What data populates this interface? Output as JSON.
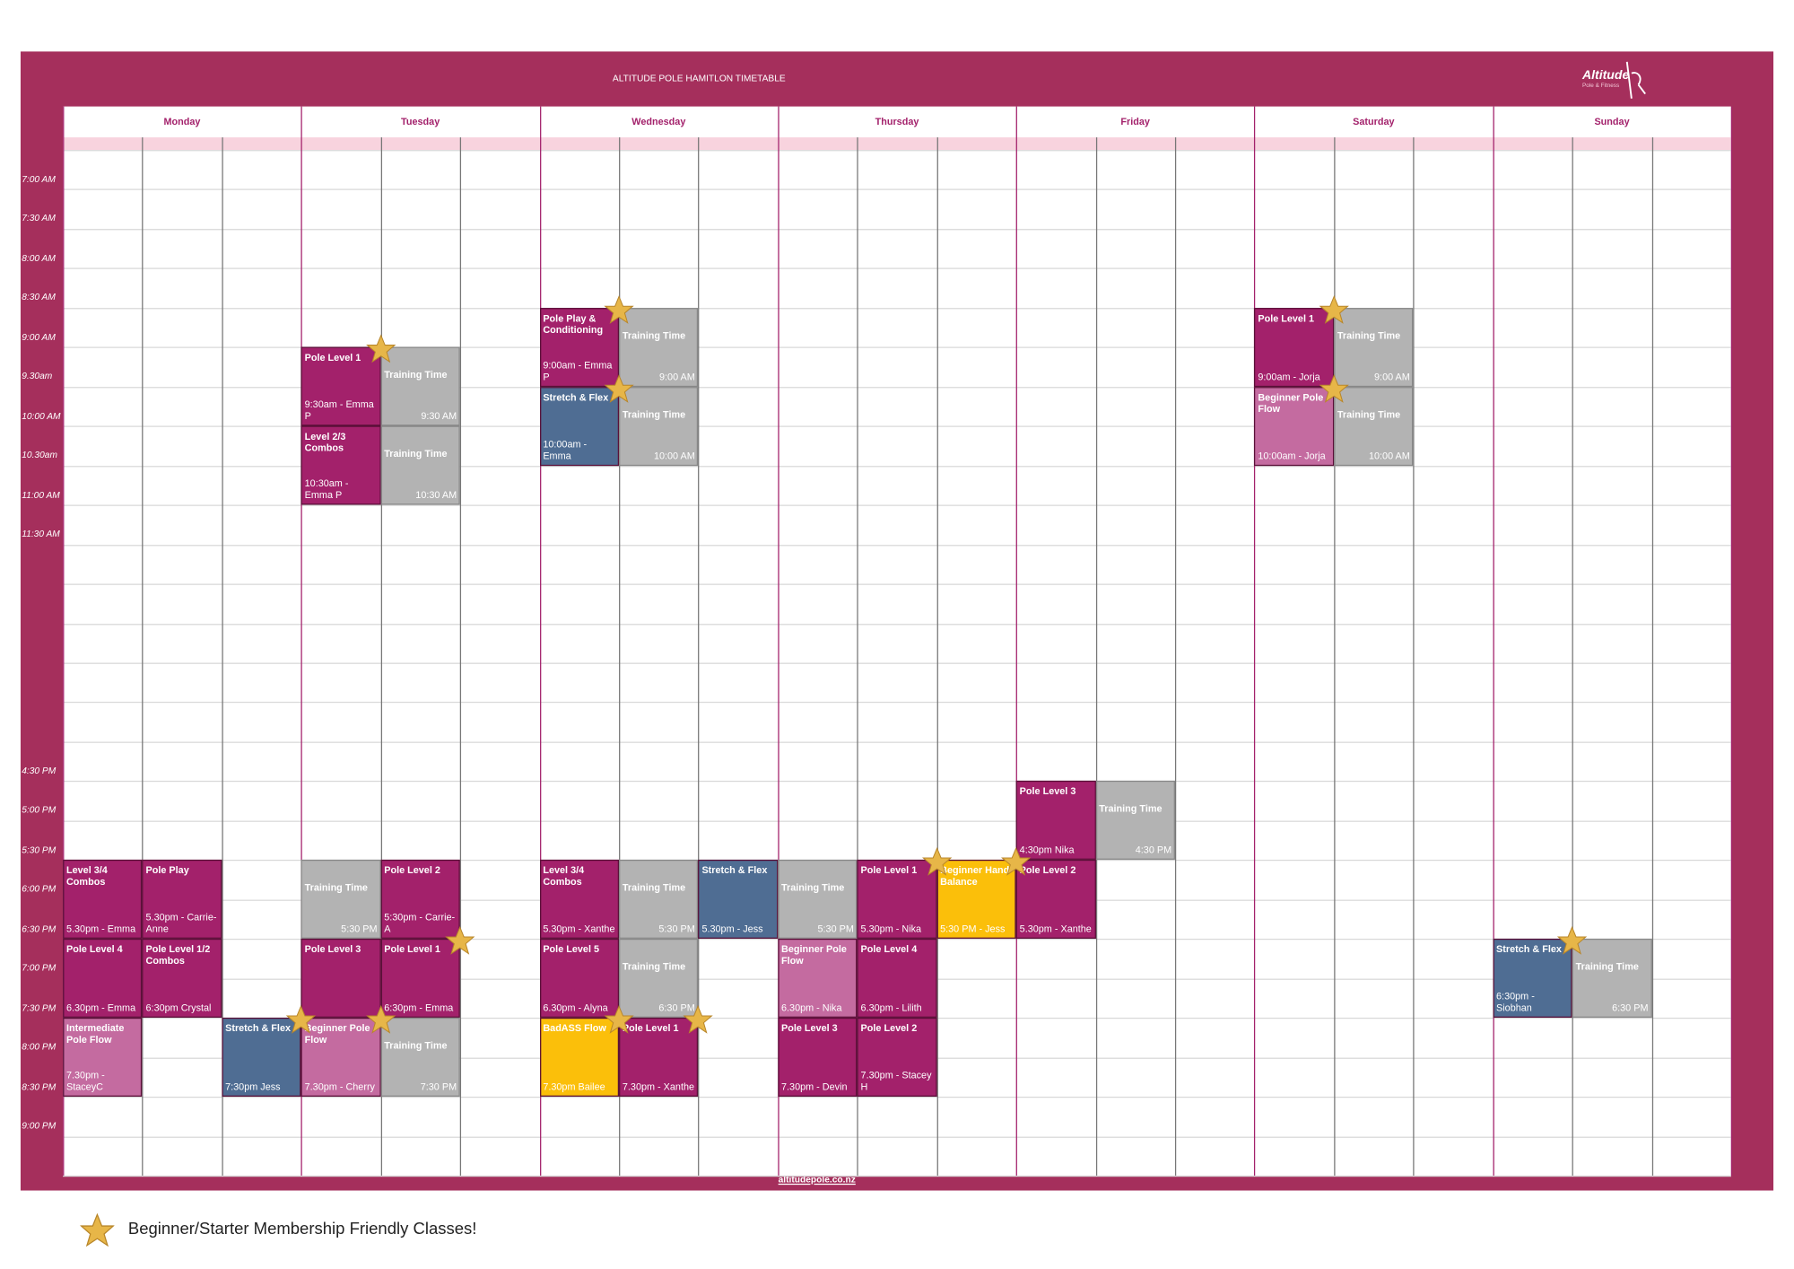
{
  "header": {
    "title": "ALTITUDE POLE HAMITLON TIMETABLE",
    "logo_text": "Altitude",
    "logo_subtext": "Pole & Fitness"
  },
  "time_slots": [
    "7:00 AM",
    "7:30 AM",
    "8:00 AM",
    "8:30 AM",
    "9:00 AM",
    "9.30am",
    "10:00 AM",
    "10.30am",
    "11:00 AM",
    "11:30 AM",
    null,
    null,
    null,
    null,
    null,
    "4:30 PM",
    "5:00 PM",
    "5:30 PM",
    "6:00 PM",
    "6:30 PM",
    "7:00 PM",
    "7:30 PM",
    "8:00 PM",
    "8:30 PM",
    "9:00 PM",
    null
  ],
  "days": [
    {
      "name": "Monday",
      "classes": [
        {
          "title": "Level 3/4 Combos",
          "time": "5.30pm - Emma",
          "color": "#a3216b"
        },
        {
          "title": "Pole Play",
          "time": "5.30pm - Carrie-Anne",
          "color": "#a3216b"
        },
        {
          "title": "Pole Level 4",
          "time": "6.30pm - Emma",
          "color": "#a3216b"
        },
        {
          "title": "Pole Level 1/2 Combos",
          "time": "6:30pm Crystal",
          "color": "#a3216b"
        },
        {
          "title": "Intermediate Pole Flow",
          "time": "7.30pm - StaceyC",
          "color": "#c46ba0"
        },
        {
          "title": "Stretch & Flex",
          "time": "7:30pm Jess",
          "color": "#4f6d93",
          "star": true
        }
      ]
    },
    {
      "name": "Tuesday",
      "classes": [
        {
          "title": "Pole Level 1",
          "time": "9:30am - Emma P",
          "color": "#a3216b",
          "star": true
        },
        {
          "title": "Training Time",
          "time": "9:30 AM",
          "color": "#b3b3b3"
        },
        {
          "title": "Level 2/3 Combos",
          "time": "10:30am - Emma P",
          "color": "#a3216b"
        },
        {
          "title": "Training Time",
          "time": "10:30 AM",
          "color": "#b3b3b3"
        },
        {
          "title": "Training Time",
          "time": "5:30 PM",
          "color": "#b3b3b3"
        },
        {
          "title": "Pole Level 2",
          "time": "5:30pm - Carrie-A",
          "color": "#a3216b"
        },
        {
          "title": "Pole Level 3",
          "color": "#a3216b"
        },
        {
          "title": "Pole Level 1",
          "time": "6:30pm - Emma",
          "color": "#a3216b",
          "star": true
        },
        {
          "title": "Beginner Pole Flow",
          "time": "7.30pm - Cherry",
          "color": "#c46ba0",
          "star": true
        },
        {
          "title": "Training Time",
          "time": "7:30 PM",
          "color": "#b3b3b3"
        }
      ]
    },
    {
      "name": "Wednesday",
      "classes": [
        {
          "title": "Pole Play & Conditioning",
          "time": "9:00am - Emma P",
          "color": "#a3216b",
          "star": true
        },
        {
          "title": "Training Time",
          "time": "9:00 AM",
          "color": "#b3b3b3"
        },
        {
          "title": "Stretch & Flex",
          "time": "10:00am - Emma",
          "color": "#4f6d93",
          "star": true
        },
        {
          "title": "Training Time",
          "time": "10:00 AM",
          "color": "#b3b3b3"
        },
        {
          "title": "Level 3/4 Combos",
          "time": "5.30pm - Xanthe",
          "color": "#a3216b"
        },
        {
          "title": "Training Time",
          "time": "5:30 PM",
          "color": "#b3b3b3"
        },
        {
          "title": "Stretch & Flex",
          "time": "5.30pm - Jess",
          "color": "#4f6d93"
        },
        {
          "title": "Pole Level 5",
          "time": "6.30pm - Alyna",
          "color": "#a3216b"
        },
        {
          "title": "Training Time",
          "time": "6:30 PM",
          "color": "#b3b3b3"
        },
        {
          "title": "BadASS Flow",
          "time": "7.30pm Bailee",
          "color": "#fbbf0a",
          "star": true
        },
        {
          "title": "Pole Level 1",
          "time": "7.30pm - Xanthe",
          "color": "#a3216b",
          "star": true
        }
      ]
    },
    {
      "name": "Thursday",
      "classes": [
        {
          "title": "Training Time",
          "time": "5:30 PM",
          "color": "#b3b3b3"
        },
        {
          "title": "Pole Level 1",
          "time": "5.30pm - Nika",
          "color": "#a3216b",
          "star": true
        },
        {
          "title": "Beginner Hand Balance",
          "time": "5:30 PM - Jess",
          "color": "#fbbf0a",
          "star": true
        },
        {
          "title": "Beginner Pole Flow",
          "time": "6.30pm - Nika",
          "color": "#c46ba0"
        },
        {
          "title": "Pole Level 4",
          "time": "6.30pm - Lilith",
          "color": "#a3216b"
        },
        {
          "title": "Pole Level 3",
          "time": "7.30pm - Devin",
          "color": "#a3216b"
        },
        {
          "title": "Pole Level 2",
          "time": "7.30pm - Stacey H",
          "color": "#a3216b"
        }
      ]
    },
    {
      "name": "Friday",
      "classes": [
        {
          "title": "Pole Level 3",
          "time": "4:30pm Nika",
          "color": "#a3216b"
        },
        {
          "title": "Training Time",
          "time": "4:30 PM",
          "color": "#b3b3b3"
        },
        {
          "title": "Pole Level 2",
          "time": "5.30pm - Xanthe",
          "color": "#a3216b"
        }
      ]
    },
    {
      "name": "Saturday",
      "classes": [
        {
          "title": "Pole Level 1",
          "time": "9:00am - Jorja",
          "color": "#a3216b",
          "star": true
        },
        {
          "title": "Training Time",
          "time": "9:00 AM",
          "color": "#b3b3b3"
        },
        {
          "title": "Beginner Pole Flow",
          "time": "10:00am - Jorja",
          "color": "#c46ba0",
          "star": true
        },
        {
          "title": "Training Time",
          "time": "10:00 AM",
          "color": "#b3b3b3"
        }
      ]
    },
    {
      "name": "Sunday",
      "classes": [
        {
          "title": "Stretch & Flex",
          "time": "6:30pm - Siobhan",
          "color": "#4f6d93",
          "star": true
        },
        {
          "title": "Training Time",
          "time": "6:30 PM",
          "color": "#b3b3b3"
        }
      ]
    }
  ],
  "footer": {
    "website": "altitudepole.co.nz"
  },
  "legend": {
    "text": "Beginner/Starter Membership Friendly Classes!"
  }
}
